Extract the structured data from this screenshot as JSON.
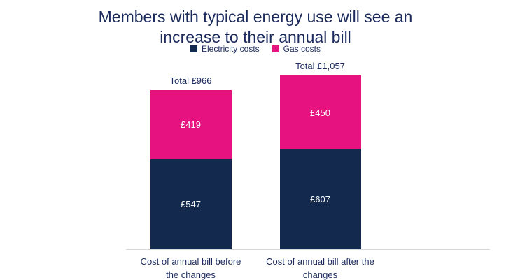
{
  "colors": {
    "electricity": "#13294e",
    "gas": "#e5127f",
    "text": "#1b2b5e",
    "axis": "#d9d9d9"
  },
  "chart_data": {
    "type": "bar",
    "stacked": true,
    "title": "Members with typical energy use will see an increase to their annual bill",
    "legend_position": "top",
    "grid": false,
    "ylim": [
      0,
      1100
    ],
    "categories": [
      "Cost of annual bill before the changes",
      "Cost of annual bill after the changes"
    ],
    "series": [
      {
        "name": "Electricity costs",
        "color": "#13294e",
        "values": [
          547,
          607
        ]
      },
      {
        "name": "Gas costs",
        "color": "#e5127f",
        "values": [
          419,
          450
        ]
      }
    ],
    "totals": [
      966,
      1057
    ],
    "bars": [
      {
        "category": "Cost of annual bill before the changes",
        "total": 966,
        "total_label": "Total £966",
        "segments": [
          {
            "series": "Electricity costs",
            "value": 547,
            "label": "£547"
          },
          {
            "series": "Gas costs",
            "value": 419,
            "label": "£419"
          }
        ]
      },
      {
        "category": "Cost of annual bill after the changes",
        "total": 1057,
        "total_label": "Total £1,057",
        "segments": [
          {
            "series": "Electricity costs",
            "value": 607,
            "label": "£607"
          },
          {
            "series": "Gas costs",
            "value": 450,
            "label": "£450"
          }
        ]
      }
    ]
  }
}
